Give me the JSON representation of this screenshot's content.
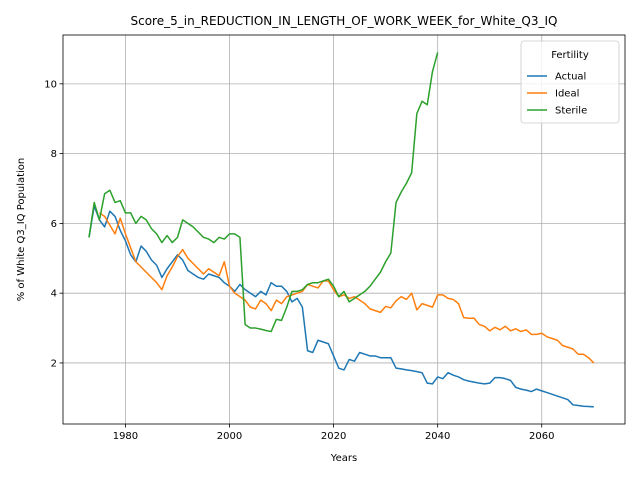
{
  "chart_data": {
    "type": "line",
    "title": "Score_5_in_REDUCTION_IN_LENGTH_OF_WORK_WEEK_for_White_Q3_IQ",
    "xlabel": "Years",
    "ylabel": "% of White Q3_IQ Population",
    "xlim": [
      1968,
      2076
    ],
    "ylim": [
      0.25,
      11.4
    ],
    "xticks": [
      1980,
      2000,
      2020,
      2040,
      2060
    ],
    "yticks": [
      2,
      4,
      6,
      8,
      10
    ],
    "grid": true,
    "legend": {
      "title": "Fertility",
      "placement": "top-right"
    },
    "series": [
      {
        "name": "Actual",
        "color": "#1f77b4",
        "points": [
          [
            1973,
            5.6
          ],
          [
            1974,
            6.5
          ],
          [
            1975,
            6.1
          ],
          [
            1976,
            5.9
          ],
          [
            1977,
            6.35
          ],
          [
            1978,
            6.2
          ],
          [
            1979,
            5.8
          ],
          [
            1980,
            5.5
          ],
          [
            1981,
            5.1
          ],
          [
            1982,
            4.9
          ],
          [
            1983,
            5.35
          ],
          [
            1984,
            5.2
          ],
          [
            1985,
            4.95
          ],
          [
            1986,
            4.8
          ],
          [
            1987,
            4.45
          ],
          [
            1988,
            4.7
          ],
          [
            1989,
            4.9
          ],
          [
            1990,
            5.1
          ],
          [
            1991,
            4.95
          ],
          [
            1992,
            4.65
          ],
          [
            1993,
            4.55
          ],
          [
            1994,
            4.45
          ],
          [
            1995,
            4.4
          ],
          [
            1996,
            4.55
          ],
          [
            1997,
            4.5
          ],
          [
            1998,
            4.45
          ],
          [
            1999,
            4.3
          ],
          [
            2000,
            4.2
          ],
          [
            2001,
            4.05
          ],
          [
            2002,
            4.25
          ],
          [
            2003,
            4.1
          ],
          [
            2004,
            4.0
          ],
          [
            2005,
            3.9
          ],
          [
            2006,
            4.05
          ],
          [
            2007,
            3.95
          ],
          [
            2008,
            4.3
          ],
          [
            2009,
            4.2
          ],
          [
            2010,
            4.2
          ],
          [
            2011,
            4.05
          ],
          [
            2012,
            3.75
          ],
          [
            2013,
            3.85
          ],
          [
            2014,
            3.6
          ],
          [
            2015,
            2.35
          ],
          [
            2016,
            2.3
          ],
          [
            2017,
            2.65
          ],
          [
            2018,
            2.6
          ],
          [
            2019,
            2.55
          ],
          [
            2020,
            2.2
          ],
          [
            2021,
            1.85
          ],
          [
            2022,
            1.8
          ],
          [
            2023,
            2.1
          ],
          [
            2024,
            2.05
          ],
          [
            2025,
            2.3
          ],
          [
            2026,
            2.25
          ],
          [
            2027,
            2.2
          ],
          [
            2028,
            2.2
          ],
          [
            2029,
            2.15
          ],
          [
            2030,
            2.15
          ],
          [
            2031,
            2.15
          ],
          [
            2032,
            1.85
          ],
          [
            2033,
            1.83
          ],
          [
            2034,
            1.8
          ],
          [
            2035,
            1.78
          ],
          [
            2036,
            1.75
          ],
          [
            2037,
            1.72
          ],
          [
            2038,
            1.42
          ],
          [
            2039,
            1.4
          ],
          [
            2040,
            1.6
          ],
          [
            2041,
            1.55
          ],
          [
            2042,
            1.72
          ],
          [
            2043,
            1.65
          ],
          [
            2044,
            1.6
          ],
          [
            2045,
            1.52
          ],
          [
            2046,
            1.48
          ],
          [
            2047,
            1.45
          ],
          [
            2048,
            1.42
          ],
          [
            2049,
            1.4
          ],
          [
            2050,
            1.42
          ],
          [
            2051,
            1.58
          ],
          [
            2052,
            1.58
          ],
          [
            2053,
            1.55
          ],
          [
            2054,
            1.5
          ],
          [
            2055,
            1.3
          ],
          [
            2056,
            1.25
          ],
          [
            2057,
            1.22
          ],
          [
            2058,
            1.18
          ],
          [
            2059,
            1.25
          ],
          [
            2060,
            1.2
          ],
          [
            2061,
            1.15
          ],
          [
            2062,
            1.1
          ],
          [
            2063,
            1.05
          ],
          [
            2064,
            1.0
          ],
          [
            2065,
            0.95
          ],
          [
            2066,
            0.8
          ],
          [
            2067,
            0.78
          ],
          [
            2068,
            0.76
          ],
          [
            2069,
            0.75
          ],
          [
            2070,
            0.74
          ]
        ]
      },
      {
        "name": "Ideal",
        "color": "#ff7f0e",
        "points": [
          [
            1975,
            6.3
          ],
          [
            1976,
            6.2
          ],
          [
            1977,
            5.95
          ],
          [
            1978,
            5.7
          ],
          [
            1979,
            6.15
          ],
          [
            1980,
            5.7
          ],
          [
            1981,
            5.3
          ],
          [
            1982,
            4.9
          ],
          [
            1983,
            4.75
          ],
          [
            1984,
            4.6
          ],
          [
            1985,
            4.45
          ],
          [
            1986,
            4.3
          ],
          [
            1987,
            4.1
          ],
          [
            1988,
            4.5
          ],
          [
            1989,
            4.75
          ],
          [
            1990,
            5.05
          ],
          [
            1991,
            5.25
          ],
          [
            1992,
            5.0
          ],
          [
            1993,
            4.85
          ],
          [
            1994,
            4.7
          ],
          [
            1995,
            4.55
          ],
          [
            1996,
            4.7
          ],
          [
            1997,
            4.6
          ],
          [
            1998,
            4.5
          ],
          [
            1999,
            4.9
          ],
          [
            2000,
            4.2
          ],
          [
            2001,
            4.0
          ],
          [
            2002,
            3.9
          ],
          [
            2003,
            3.8
          ],
          [
            2004,
            3.6
          ],
          [
            2005,
            3.55
          ],
          [
            2006,
            3.8
          ],
          [
            2007,
            3.7
          ],
          [
            2008,
            3.5
          ],
          [
            2009,
            3.8
          ],
          [
            2010,
            3.7
          ],
          [
            2011,
            3.9
          ],
          [
            2012,
            3.95
          ],
          [
            2013,
            4.0
          ],
          [
            2014,
            4.05
          ],
          [
            2015,
            4.25
          ],
          [
            2016,
            4.2
          ],
          [
            2017,
            4.15
          ],
          [
            2018,
            4.35
          ],
          [
            2019,
            4.35
          ],
          [
            2020,
            4.1
          ],
          [
            2021,
            3.9
          ],
          [
            2022,
            3.95
          ],
          [
            2023,
            3.85
          ],
          [
            2024,
            3.9
          ],
          [
            2025,
            3.8
          ],
          [
            2026,
            3.7
          ],
          [
            2027,
            3.55
          ],
          [
            2028,
            3.5
          ],
          [
            2029,
            3.45
          ],
          [
            2030,
            3.62
          ],
          [
            2031,
            3.58
          ],
          [
            2032,
            3.78
          ],
          [
            2033,
            3.9
          ],
          [
            2034,
            3.82
          ],
          [
            2035,
            4.0
          ],
          [
            2036,
            3.52
          ],
          [
            2037,
            3.7
          ],
          [
            2038,
            3.65
          ],
          [
            2039,
            3.6
          ],
          [
            2040,
            3.95
          ],
          [
            2041,
            3.95
          ],
          [
            2042,
            3.85
          ],
          [
            2043,
            3.82
          ],
          [
            2044,
            3.7
          ],
          [
            2045,
            3.3
          ],
          [
            2046,
            3.28
          ],
          [
            2047,
            3.28
          ],
          [
            2048,
            3.1
          ],
          [
            2049,
            3.05
          ],
          [
            2050,
            2.92
          ],
          [
            2051,
            3.02
          ],
          [
            2052,
            2.95
          ],
          [
            2053,
            3.05
          ],
          [
            2054,
            2.92
          ],
          [
            2055,
            2.98
          ],
          [
            2056,
            2.9
          ],
          [
            2057,
            2.95
          ],
          [
            2058,
            2.82
          ],
          [
            2059,
            2.82
          ],
          [
            2060,
            2.85
          ],
          [
            2061,
            2.75
          ],
          [
            2062,
            2.7
          ],
          [
            2063,
            2.65
          ],
          [
            2064,
            2.5
          ],
          [
            2065,
            2.45
          ],
          [
            2066,
            2.4
          ],
          [
            2067,
            2.25
          ],
          [
            2068,
            2.25
          ],
          [
            2069,
            2.15
          ],
          [
            2070,
            2.0
          ]
        ]
      },
      {
        "name": "Sterile",
        "color": "#2ca02c",
        "points": [
          [
            1973,
            5.6
          ],
          [
            1974,
            6.6
          ],
          [
            1975,
            6.1
          ],
          [
            1976,
            6.85
          ],
          [
            1977,
            6.95
          ],
          [
            1978,
            6.6
          ],
          [
            1979,
            6.65
          ],
          [
            1980,
            6.3
          ],
          [
            1981,
            6.3
          ],
          [
            1982,
            6.0
          ],
          [
            1983,
            6.2
          ],
          [
            1984,
            6.1
          ],
          [
            1985,
            5.85
          ],
          [
            1986,
            5.7
          ],
          [
            1987,
            5.45
          ],
          [
            1988,
            5.65
          ],
          [
            1989,
            5.45
          ],
          [
            1990,
            5.6
          ],
          [
            1991,
            6.1
          ],
          [
            1992,
            6.0
          ],
          [
            1993,
            5.9
          ],
          [
            1994,
            5.75
          ],
          [
            1995,
            5.6
          ],
          [
            1996,
            5.55
          ],
          [
            1997,
            5.45
          ],
          [
            1998,
            5.6
          ],
          [
            1999,
            5.55
          ],
          [
            2000,
            5.7
          ],
          [
            2001,
            5.7
          ],
          [
            2002,
            5.6
          ],
          [
            2003,
            3.1
          ],
          [
            2004,
            3.0
          ],
          [
            2005,
            3.0
          ],
          [
            2006,
            2.97
          ],
          [
            2007,
            2.93
          ],
          [
            2008,
            2.9
          ],
          [
            2009,
            3.25
          ],
          [
            2010,
            3.22
          ],
          [
            2011,
            3.6
          ],
          [
            2012,
            4.05
          ],
          [
            2013,
            4.05
          ],
          [
            2014,
            4.1
          ],
          [
            2015,
            4.25
          ],
          [
            2016,
            4.3
          ],
          [
            2017,
            4.3
          ],
          [
            2018,
            4.35
          ],
          [
            2019,
            4.4
          ],
          [
            2020,
            4.2
          ],
          [
            2021,
            3.9
          ],
          [
            2022,
            4.05
          ],
          [
            2023,
            3.75
          ],
          [
            2024,
            3.85
          ],
          [
            2025,
            3.95
          ],
          [
            2026,
            4.05
          ],
          [
            2027,
            4.2
          ],
          [
            2028,
            4.4
          ],
          [
            2029,
            4.6
          ],
          [
            2030,
            4.9
          ],
          [
            2031,
            5.15
          ],
          [
            2032,
            6.6
          ],
          [
            2033,
            6.9
          ],
          [
            2034,
            7.15
          ],
          [
            2035,
            7.45
          ],
          [
            2036,
            9.15
          ],
          [
            2037,
            9.5
          ],
          [
            2038,
            9.4
          ],
          [
            2039,
            10.35
          ],
          [
            2040,
            10.9
          ]
        ]
      }
    ]
  }
}
